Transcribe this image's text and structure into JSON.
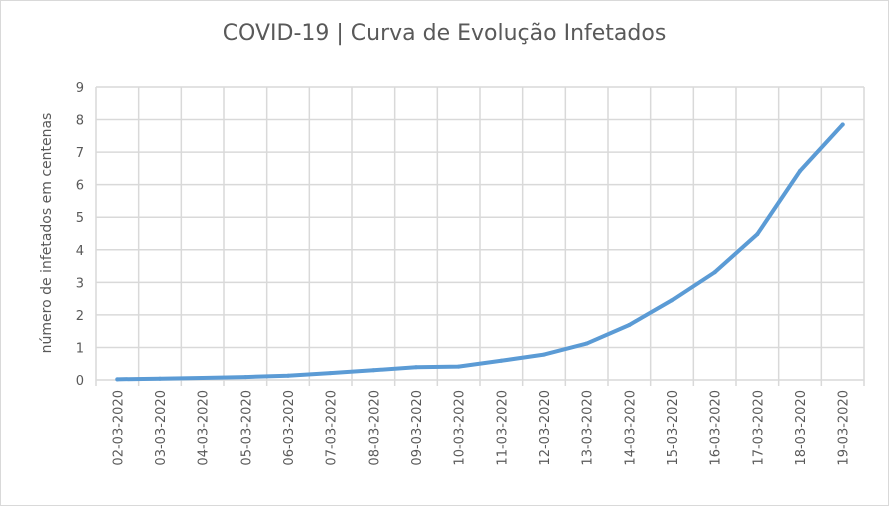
{
  "chart_data": {
    "type": "line",
    "title": "COVID-19 | Curva de Evolução Infetados",
    "xlabel": "",
    "ylabel": "número de infetados em centenas",
    "categories": [
      "02-03-2020",
      "03-03-2020",
      "04-03-2020",
      "05-03-2020",
      "06-03-2020",
      "07-03-2020",
      "08-03-2020",
      "09-03-2020",
      "10-03-2020",
      "11-03-2020",
      "12-03-2020",
      "13-03-2020",
      "14-03-2020",
      "15-03-2020",
      "16-03-2020",
      "17-03-2020",
      "18-03-2020",
      "19-03-2020"
    ],
    "values": [
      0.02,
      0.04,
      0.06,
      0.09,
      0.13,
      0.21,
      0.3,
      0.39,
      0.41,
      0.59,
      0.78,
      1.12,
      1.69,
      2.45,
      3.31,
      4.48,
      6.42,
      7.85
    ],
    "ylim": [
      0,
      9
    ],
    "yticks": [
      0,
      1,
      2,
      3,
      4,
      5,
      6,
      7,
      8,
      9
    ],
    "grid": true,
    "line_color": "#5B9BD5"
  }
}
